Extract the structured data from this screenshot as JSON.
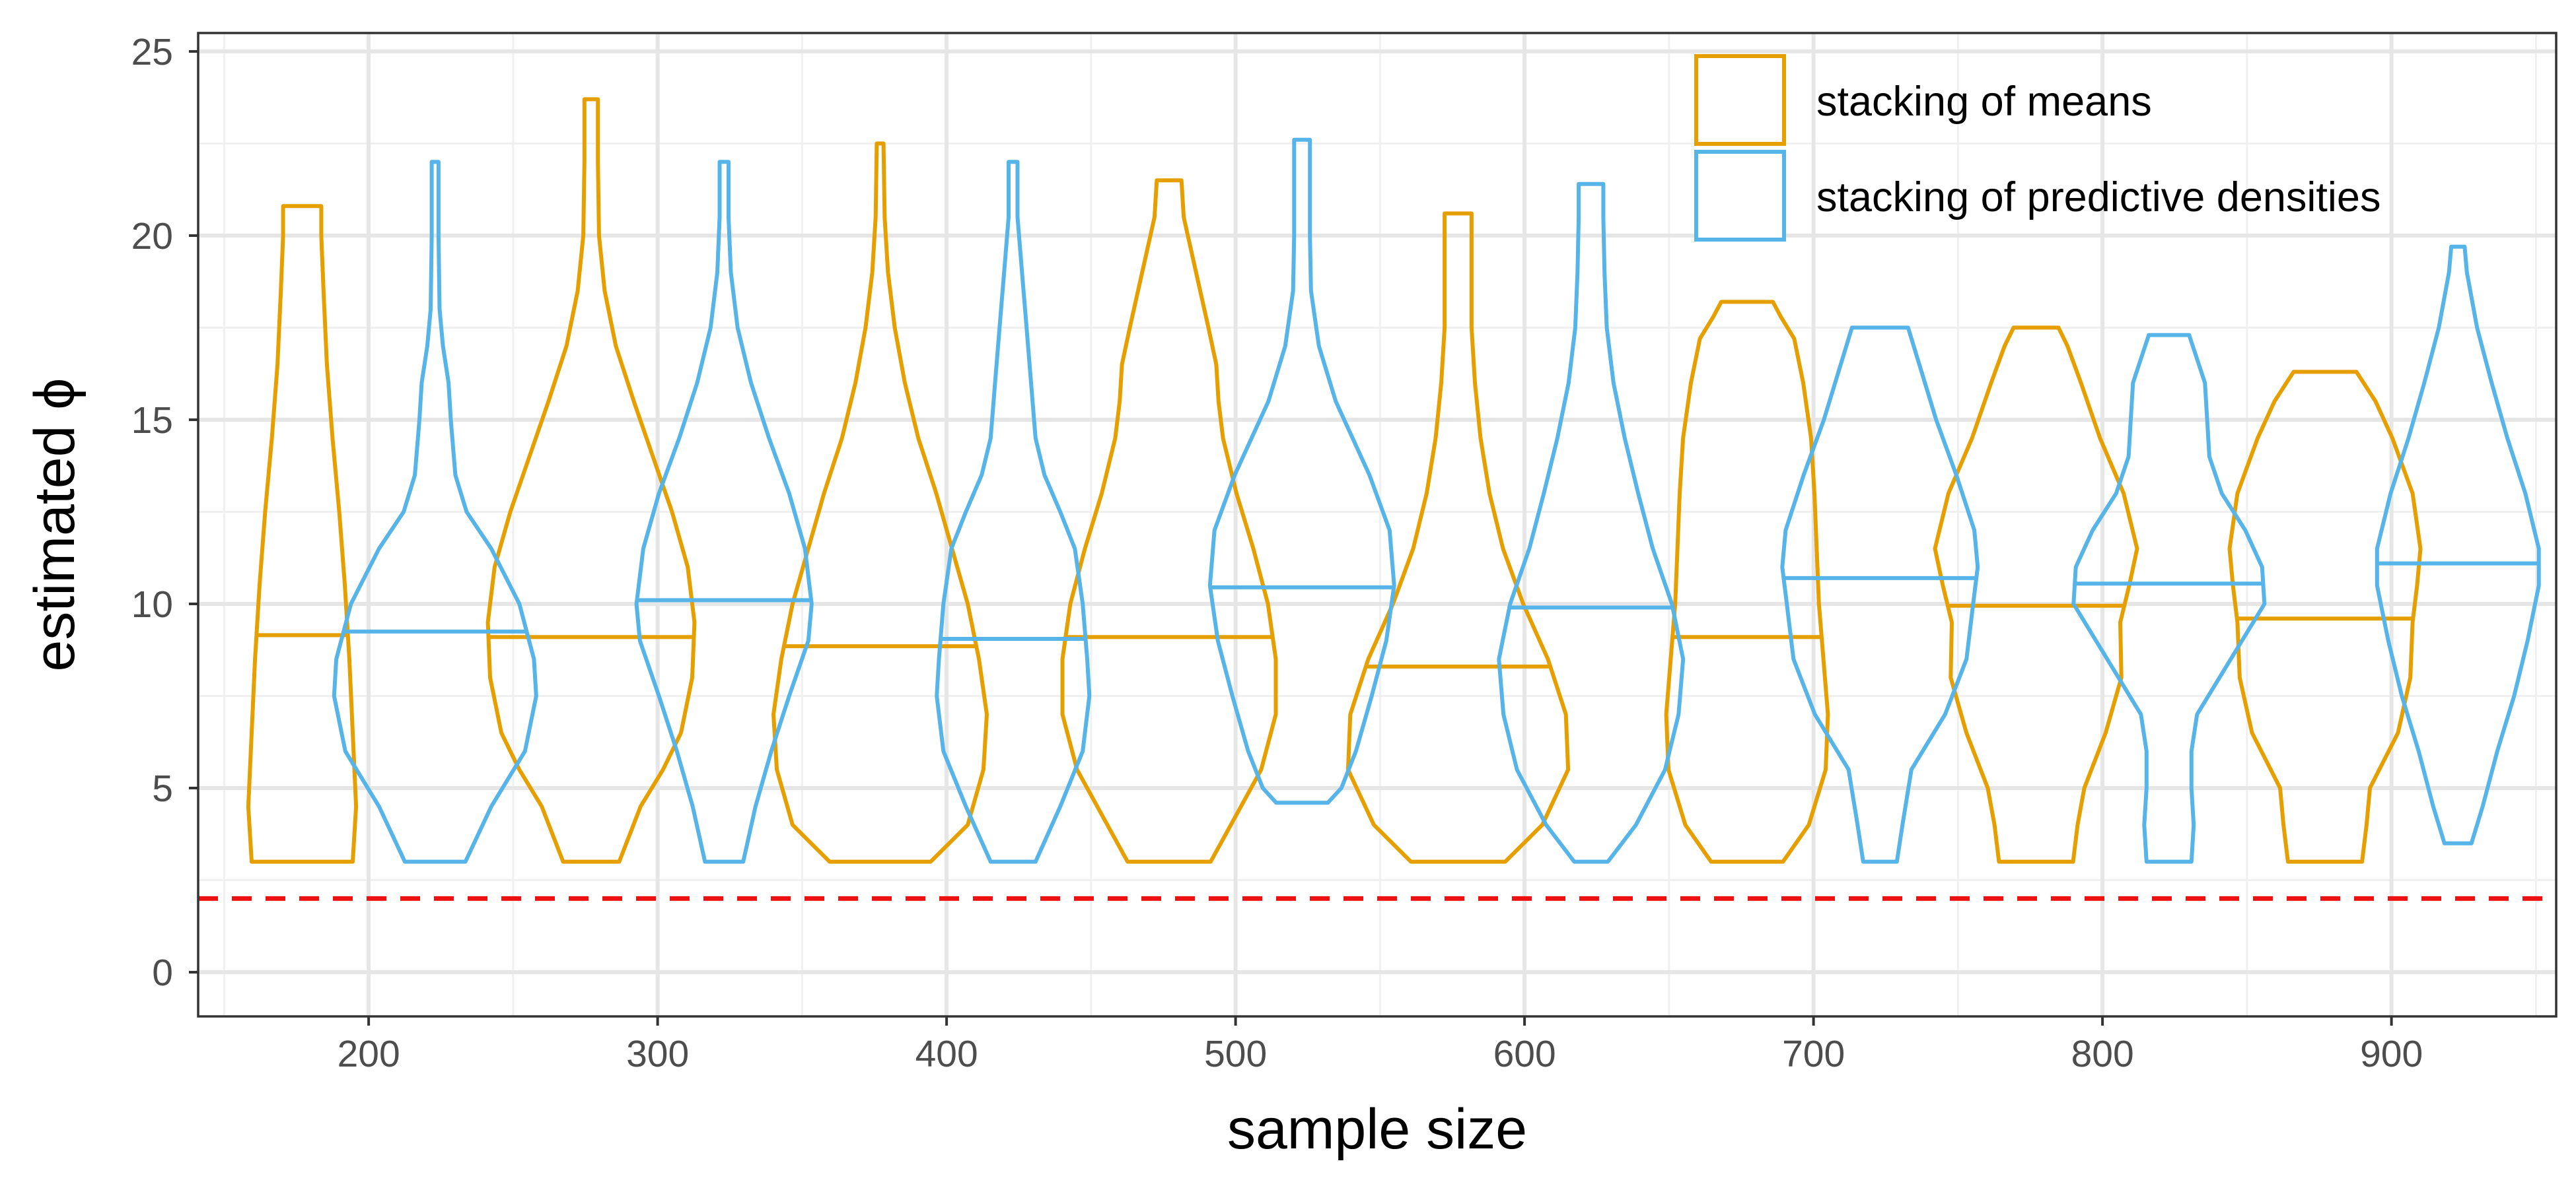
{
  "chart_data": {
    "type": "violin",
    "title": "",
    "xlabel": "sample size",
    "ylabel": "estimated ϕ",
    "xlim": [
      141,
      957
    ],
    "ylim": [
      -1.2,
      25.5
    ],
    "x_ticks": [
      200,
      300,
      400,
      500,
      600,
      700,
      800,
      900
    ],
    "y_ticks": [
      0,
      5,
      10,
      15,
      20,
      25
    ],
    "minor_y": [
      2.5,
      7.5,
      12.5,
      17.5,
      22.5
    ],
    "minor_x": [
      150,
      250,
      350,
      450,
      550,
      650,
      750,
      850,
      950
    ],
    "grid": true,
    "legend_position": "top-right",
    "reference_line": {
      "y": 2,
      "style": "dashed",
      "color": "#ee1111"
    },
    "colors": {
      "means": "#e69f00",
      "densities": "#56b4e9"
    },
    "series": [
      {
        "name": "stacking of means",
        "key": "means",
        "violins": [
          {
            "x": 177,
            "median": 9.15,
            "profile": [
              [
                3.0,
                0.45
              ],
              [
                4.5,
                0.48
              ],
              [
                6.5,
                0.45
              ],
              [
                8.5,
                0.42
              ],
              [
                10.5,
                0.38
              ],
              [
                12.5,
                0.33
              ],
              [
                14.5,
                0.27
              ],
              [
                16.5,
                0.22
              ],
              [
                18.5,
                0.19
              ],
              [
                20.0,
                0.17
              ],
              [
                20.8,
                0.17
              ]
            ]
          },
          {
            "x": 277,
            "median": 9.1,
            "profile": [
              [
                3.0,
                0.25
              ],
              [
                4.5,
                0.44
              ],
              [
                5.5,
                0.64
              ],
              [
                6.5,
                0.8
              ],
              [
                8.0,
                0.9
              ],
              [
                9.5,
                0.92
              ],
              [
                11.0,
                0.86
              ],
              [
                12.5,
                0.72
              ],
              [
                14.0,
                0.55
              ],
              [
                15.5,
                0.38
              ],
              [
                17.0,
                0.22
              ],
              [
                18.5,
                0.12
              ],
              [
                20.0,
                0.07
              ],
              [
                22.0,
                0.06
              ],
              [
                23.7,
                0.06
              ]
            ]
          },
          {
            "x": 377,
            "median": 8.85,
            "profile": [
              [
                3.0,
                0.45
              ],
              [
                4.0,
                0.78
              ],
              [
                5.5,
                0.92
              ],
              [
                7.0,
                0.95
              ],
              [
                8.5,
                0.88
              ],
              [
                10.0,
                0.78
              ],
              [
                11.5,
                0.64
              ],
              [
                13.0,
                0.5
              ],
              [
                14.5,
                0.34
              ],
              [
                16.0,
                0.22
              ],
              [
                17.5,
                0.13
              ],
              [
                19.0,
                0.07
              ],
              [
                20.5,
                0.04
              ],
              [
                22.5,
                0.03
              ]
            ]
          },
          {
            "x": 477,
            "median": 9.1,
            "profile": [
              [
                3.0,
                0.37
              ],
              [
                4.0,
                0.55
              ],
              [
                5.5,
                0.82
              ],
              [
                7.0,
                0.95
              ],
              [
                8.5,
                0.95
              ],
              [
                10.0,
                0.88
              ],
              [
                11.5,
                0.75
              ],
              [
                13.0,
                0.6
              ],
              [
                14.5,
                0.48
              ],
              [
                15.5,
                0.44
              ],
              [
                16.5,
                0.42
              ],
              [
                17.5,
                0.35
              ],
              [
                19.0,
                0.24
              ],
              [
                20.5,
                0.13
              ],
              [
                21.5,
                0.11
              ]
            ]
          },
          {
            "x": 577,
            "median": 8.3,
            "profile": [
              [
                3.0,
                0.42
              ],
              [
                4.0,
                0.75
              ],
              [
                5.5,
                0.98
              ],
              [
                7.0,
                0.96
              ],
              [
                8.5,
                0.8
              ],
              [
                10.0,
                0.58
              ],
              [
                11.5,
                0.4
              ],
              [
                13.0,
                0.28
              ],
              [
                14.5,
                0.2
              ],
              [
                16.0,
                0.15
              ],
              [
                17.5,
                0.12
              ],
              [
                19.0,
                0.12
              ],
              [
                20.6,
                0.12
              ]
            ]
          },
          {
            "x": 677,
            "median": 9.1,
            "profile": [
              [
                3.0,
                0.32
              ],
              [
                4.0,
                0.55
              ],
              [
                5.5,
                0.7
              ],
              [
                7.0,
                0.72
              ],
              [
                8.5,
                0.68
              ],
              [
                10.0,
                0.64
              ],
              [
                11.5,
                0.62
              ],
              [
                13.0,
                0.6
              ],
              [
                14.5,
                0.57
              ],
              [
                16.0,
                0.5
              ],
              [
                17.2,
                0.42
              ],
              [
                17.8,
                0.3
              ],
              [
                18.2,
                0.23
              ]
            ]
          },
          {
            "x": 777,
            "median": 9.95,
            "profile": [
              [
                3.0,
                0.33
              ],
              [
                4.0,
                0.37
              ],
              [
                5.0,
                0.43
              ],
              [
                6.5,
                0.62
              ],
              [
                8.0,
                0.76
              ],
              [
                9.5,
                0.75
              ],
              [
                10.5,
                0.83
              ],
              [
                11.5,
                0.9
              ],
              [
                13.0,
                0.78
              ],
              [
                14.5,
                0.57
              ],
              [
                16.0,
                0.4
              ],
              [
                17.0,
                0.28
              ],
              [
                17.5,
                0.2
              ]
            ]
          },
          {
            "x": 877,
            "median": 9.6,
            "profile": [
              [
                3.0,
                0.33
              ],
              [
                4.0,
                0.37
              ],
              [
                5.0,
                0.4
              ],
              [
                6.5,
                0.65
              ],
              [
                8.0,
                0.76
              ],
              [
                9.5,
                0.78
              ],
              [
                10.5,
                0.82
              ],
              [
                11.5,
                0.85
              ],
              [
                13.0,
                0.78
              ],
              [
                14.5,
                0.6
              ],
              [
                15.5,
                0.45
              ],
              [
                16.3,
                0.28
              ]
            ]
          }
        ]
      },
      {
        "name": "stacking of predictive densities",
        "key": "densities",
        "violins": [
          {
            "x": 223,
            "median": 9.25,
            "profile": [
              [
                3.0,
                0.27
              ],
              [
                4.5,
                0.5
              ],
              [
                6.0,
                0.8
              ],
              [
                7.5,
                0.9
              ],
              [
                8.5,
                0.88
              ],
              [
                10.0,
                0.75
              ],
              [
                11.5,
                0.5
              ],
              [
                12.5,
                0.28
              ],
              [
                13.5,
                0.18
              ],
              [
                15.0,
                0.14
              ],
              [
                16.0,
                0.12
              ],
              [
                17.0,
                0.07
              ],
              [
                18.0,
                0.04
              ],
              [
                20.0,
                0.03
              ],
              [
                22.0,
                0.03
              ]
            ]
          },
          {
            "x": 323,
            "median": 10.1,
            "profile": [
              [
                3.0,
                0.17
              ],
              [
                4.5,
                0.28
              ],
              [
                6.0,
                0.42
              ],
              [
                7.5,
                0.58
              ],
              [
                9.0,
                0.75
              ],
              [
                10.0,
                0.78
              ],
              [
                11.5,
                0.72
              ],
              [
                13.0,
                0.58
              ],
              [
                14.5,
                0.4
              ],
              [
                16.0,
                0.24
              ],
              [
                17.5,
                0.12
              ],
              [
                19.0,
                0.06
              ],
              [
                20.5,
                0.04
              ],
              [
                22.0,
                0.04
              ]
            ]
          },
          {
            "x": 423,
            "median": 9.05,
            "profile": [
              [
                3.0,
                0.2
              ],
              [
                4.5,
                0.42
              ],
              [
                6.0,
                0.62
              ],
              [
                7.5,
                0.68
              ],
              [
                8.5,
                0.66
              ],
              [
                10.0,
                0.62
              ],
              [
                11.5,
                0.55
              ],
              [
                12.5,
                0.42
              ],
              [
                13.5,
                0.28
              ],
              [
                14.5,
                0.2
              ],
              [
                16.0,
                0.16
              ],
              [
                17.5,
                0.12
              ],
              [
                19.0,
                0.08
              ],
              [
                20.5,
                0.04
              ],
              [
                22.0,
                0.04
              ]
            ]
          },
          {
            "x": 523,
            "median": 10.45,
            "profile": [
              [
                4.6,
                0.23
              ],
              [
                5.0,
                0.35
              ],
              [
                6.0,
                0.48
              ],
              [
                7.5,
                0.62
              ],
              [
                9.0,
                0.75
              ],
              [
                10.5,
                0.82
              ],
              [
                12.0,
                0.78
              ],
              [
                13.5,
                0.6
              ],
              [
                14.5,
                0.45
              ],
              [
                15.5,
                0.3
              ],
              [
                17.0,
                0.15
              ],
              [
                18.5,
                0.08
              ],
              [
                20.0,
                0.07
              ],
              [
                21.5,
                0.07
              ],
              [
                22.6,
                0.07
              ]
            ]
          },
          {
            "x": 623,
            "median": 9.9,
            "profile": [
              [
                3.0,
                0.15
              ],
              [
                4.0,
                0.4
              ],
              [
                5.5,
                0.66
              ],
              [
                7.0,
                0.78
              ],
              [
                8.5,
                0.82
              ],
              [
                10.0,
                0.72
              ],
              [
                11.5,
                0.55
              ],
              [
                13.0,
                0.42
              ],
              [
                14.5,
                0.3
              ],
              [
                16.0,
                0.2
              ],
              [
                17.5,
                0.14
              ],
              [
                19.0,
                0.12
              ],
              [
                20.5,
                0.11
              ],
              [
                21.4,
                0.11
              ]
            ]
          },
          {
            "x": 723,
            "median": 10.7,
            "profile": [
              [
                3.0,
                0.15
              ],
              [
                4.0,
                0.2
              ],
              [
                5.5,
                0.28
              ],
              [
                7.0,
                0.58
              ],
              [
                8.5,
                0.77
              ],
              [
                10.0,
                0.83
              ],
              [
                11.0,
                0.87
              ],
              [
                12.0,
                0.84
              ],
              [
                13.5,
                0.68
              ],
              [
                15.0,
                0.5
              ],
              [
                16.5,
                0.35
              ],
              [
                17.5,
                0.25
              ]
            ]
          },
          {
            "x": 823,
            "median": 10.55,
            "profile": [
              [
                3.0,
                0.2
              ],
              [
                4.0,
                0.22
              ],
              [
                5.0,
                0.2
              ],
              [
                6.0,
                0.2
              ],
              [
                7.0,
                0.25
              ],
              [
                8.5,
                0.55
              ],
              [
                10.0,
                0.85
              ],
              [
                11.0,
                0.83
              ],
              [
                12.0,
                0.68
              ],
              [
                13.0,
                0.47
              ],
              [
                14.0,
                0.36
              ],
              [
                15.0,
                0.34
              ],
              [
                16.0,
                0.32
              ],
              [
                17.3,
                0.18
              ]
            ]
          },
          {
            "x": 923,
            "median": 11.1,
            "profile": [
              [
                3.5,
                0.12
              ],
              [
                4.5,
                0.22
              ],
              [
                6.0,
                0.35
              ],
              [
                7.5,
                0.5
              ],
              [
                9.0,
                0.62
              ],
              [
                10.5,
                0.72
              ],
              [
                11.5,
                0.72
              ],
              [
                13.0,
                0.6
              ],
              [
                14.5,
                0.44
              ],
              [
                16.0,
                0.3
              ],
              [
                17.5,
                0.17
              ],
              [
                19.0,
                0.08
              ],
              [
                19.7,
                0.06
              ]
            ]
          }
        ]
      }
    ]
  }
}
